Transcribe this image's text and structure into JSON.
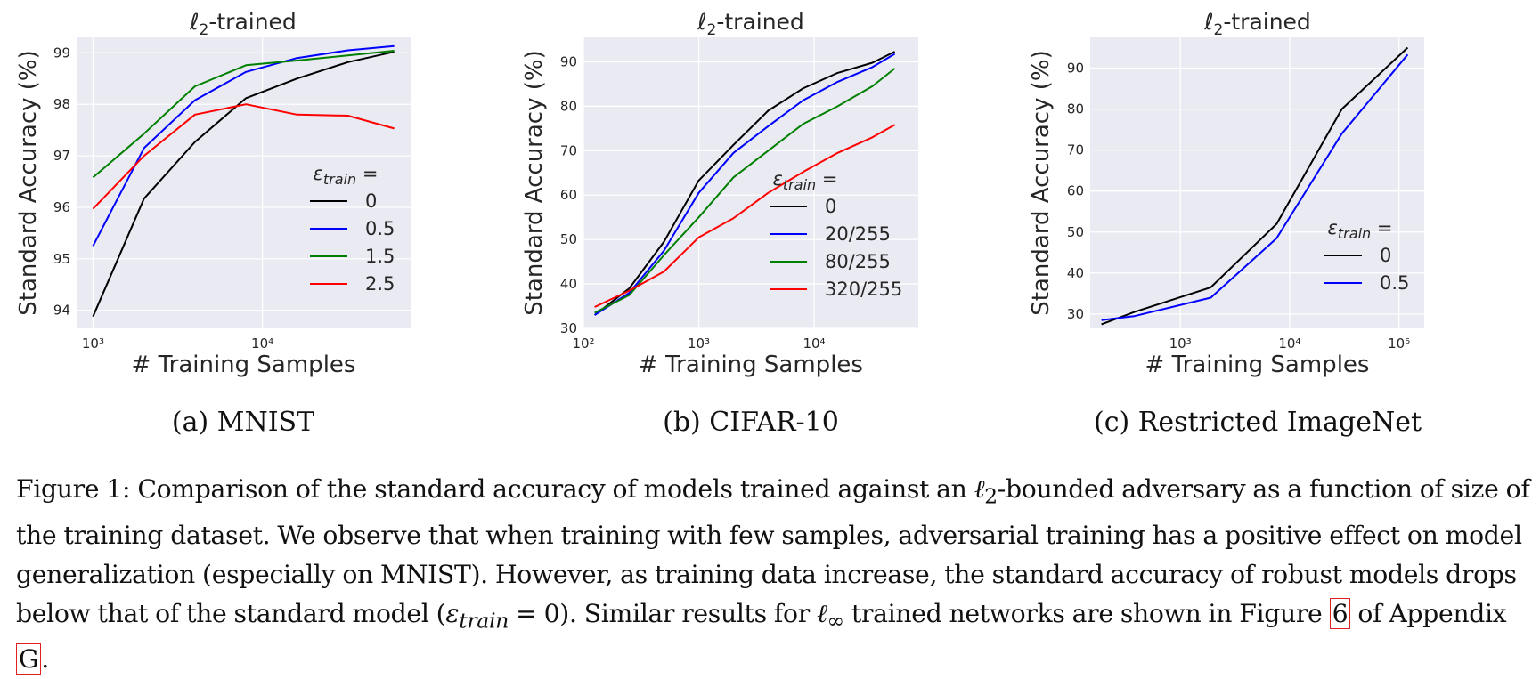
{
  "chart_data": [
    {
      "type": "line",
      "title": "ℓ2-trained",
      "subcaption": "(a) MNIST",
      "xlabel": "# Training Samples",
      "ylabel": "Standard Accuracy (%)",
      "xscale": "log",
      "xlim": [
        800,
        75000
      ],
      "ylim": [
        93.65,
        99.3
      ],
      "xticks": [
        {
          "value": 1000,
          "label": "10^3"
        },
        {
          "value": 10000,
          "label": "10^4"
        }
      ],
      "yticks": [
        94,
        95,
        96,
        97,
        98,
        99
      ],
      "grid": true,
      "legend": {
        "title": "εtrain =",
        "placement": "center-right"
      },
      "series": [
        {
          "name": "0",
          "color": "#000000",
          "x": [
            1000,
            2000,
            4000,
            8000,
            16000,
            32000,
            60000
          ],
          "y": [
            93.88,
            96.17,
            97.27,
            98.12,
            98.5,
            98.82,
            99.02
          ]
        },
        {
          "name": "0.5",
          "color": "#0000ff",
          "x": [
            1000,
            2000,
            4000,
            8000,
            16000,
            32000,
            60000
          ],
          "y": [
            95.25,
            97.15,
            98.08,
            98.63,
            98.9,
            99.05,
            99.13
          ]
        },
        {
          "name": "1.5",
          "color": "#008000",
          "x": [
            1000,
            2000,
            4000,
            8000,
            16000,
            32000,
            60000
          ],
          "y": [
            96.58,
            97.43,
            98.35,
            98.76,
            98.85,
            98.95,
            99.04
          ]
        },
        {
          "name": "2.5",
          "color": "#ff0000",
          "x": [
            1000,
            2000,
            4000,
            8000,
            16000,
            32000,
            60000
          ],
          "y": [
            95.97,
            97.0,
            97.8,
            98.0,
            97.8,
            97.78,
            97.53
          ]
        }
      ]
    },
    {
      "type": "line",
      "title": "ℓ2-trained",
      "subcaption": "(b) CIFAR-10",
      "xlabel": "# Training Samples",
      "ylabel": "Standard Accuracy (%)",
      "xscale": "log",
      "xlim": [
        100,
        80000
      ],
      "ylim": [
        30,
        95.5
      ],
      "xticks": [
        {
          "value": 100,
          "label": "10^2"
        },
        {
          "value": 1000,
          "label": "10^3"
        },
        {
          "value": 10000,
          "label": "10^4"
        }
      ],
      "yticks": [
        30,
        40,
        50,
        60,
        70,
        80,
        90
      ],
      "grid": true,
      "legend": {
        "title": "εtrain =",
        "placement": "lower-right"
      },
      "series": [
        {
          "name": "0",
          "color": "#000000",
          "x": [
            125,
            250,
            500,
            1000,
            2000,
            4000,
            8000,
            16000,
            32000,
            50000
          ],
          "y": [
            33,
            39,
            49.5,
            63.3,
            71.3,
            79,
            84,
            87.5,
            89.8,
            92.3
          ]
        },
        {
          "name": "20/255",
          "color": "#0000ff",
          "x": [
            125,
            250,
            500,
            1000,
            2000,
            4000,
            8000,
            16000,
            32000,
            50000
          ],
          "y": [
            33,
            38,
            47.5,
            60.5,
            69.5,
            75.5,
            81.3,
            85.5,
            88.8,
            91.8
          ]
        },
        {
          "name": "80/255",
          "color": "#008000",
          "x": [
            125,
            250,
            500,
            1000,
            2000,
            4000,
            8000,
            16000,
            32000,
            50000
          ],
          "y": [
            33.5,
            37.5,
            46.5,
            55,
            64,
            70,
            76,
            80,
            84.5,
            88.5
          ]
        },
        {
          "name": "320/255",
          "color": "#ff0000",
          "x": [
            125,
            250,
            500,
            1000,
            2000,
            4000,
            8000,
            16000,
            32000,
            50000
          ],
          "y": [
            34.8,
            38.5,
            42.8,
            50.5,
            54.8,
            60.5,
            65.2,
            69.5,
            73,
            75.8
          ]
        }
      ]
    },
    {
      "type": "line",
      "title": "ℓ2-trained",
      "subcaption": "(c) Restricted ImageNet",
      "xlabel": "# Training Samples",
      "ylabel": "Standard Accuracy (%)",
      "xscale": "log",
      "xlim": [
        150,
        170000
      ],
      "ylim": [
        26.5,
        97.5
      ],
      "xticks": [
        {
          "value": 1000,
          "label": "10^3"
        },
        {
          "value": 10000,
          "label": "10^4"
        },
        {
          "value": 100000,
          "label": "10^5"
        }
      ],
      "yticks": [
        30,
        40,
        50,
        60,
        70,
        80,
        90
      ],
      "grid": true,
      "legend": {
        "title": "εtrain =",
        "placement": "lower-right"
      },
      "series": [
        {
          "name": "0",
          "color": "#000000",
          "x": [
            190,
            380,
            1900,
            7600,
            30000,
            120000
          ],
          "y": [
            27.5,
            30.5,
            36.5,
            52,
            80,
            95
          ]
        },
        {
          "name": "0.5",
          "color": "#0000ff",
          "x": [
            190,
            380,
            1900,
            7600,
            30000,
            120000
          ],
          "y": [
            28.5,
            29.5,
            34,
            48.5,
            74,
            93.3
          ]
        }
      ]
    }
  ],
  "caption": {
    "part1": "Figure 1: Comparison of the standard accuracy of models trained against an ",
    "l2_symbol": "ℓ",
    "l2_sub": "2",
    "part2": "-bounded adversary as a function of size of the training dataset. We observe that when training with few samples, adversarial training has a positive effect on model generalization (especially on MNIST). However, as training data increase, the standard accuracy of robust models drops below that of the standard model (",
    "eps_symbol": "ε",
    "eps_sub": "train",
    "eq_text": " = 0",
    "part3": "). Similar results for ",
    "linf_symbol": "ℓ",
    "linf_sub": "∞",
    "part4": " trained networks are shown in Figure ",
    "figure_ref": "6",
    "part5": " of Appendix ",
    "appendix_ref": "G",
    "part6": "."
  }
}
